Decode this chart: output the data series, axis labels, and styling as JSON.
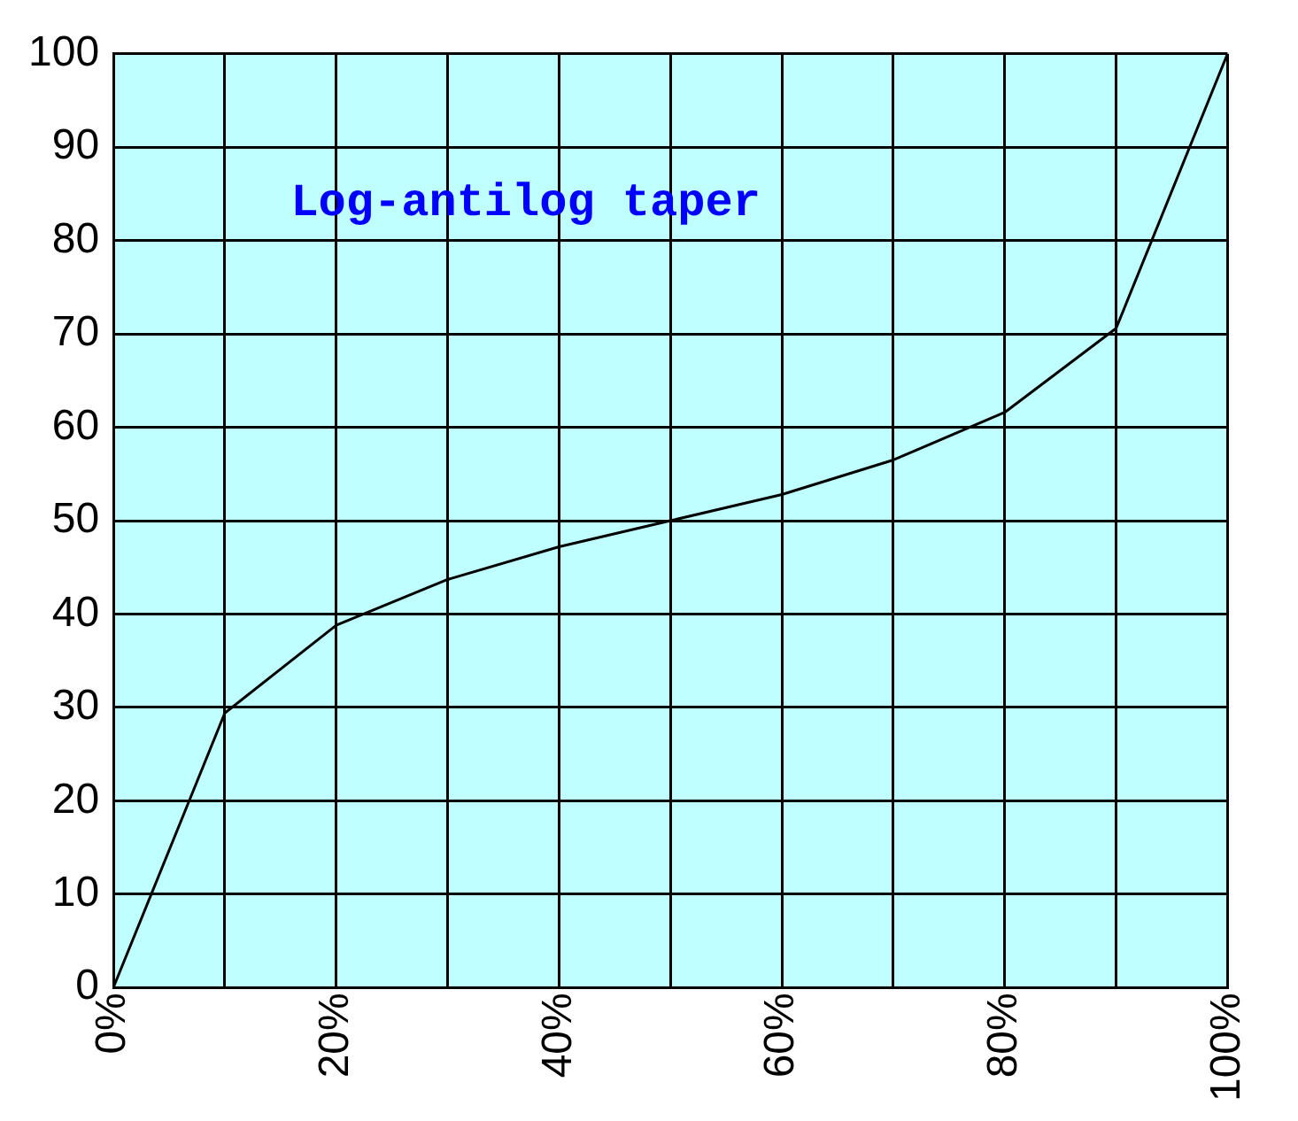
{
  "chart_data": {
    "type": "line",
    "title": "Log-antilog taper",
    "x": [
      0,
      10,
      20,
      30,
      40,
      50,
      60,
      70,
      80,
      90,
      100
    ],
    "series": [
      {
        "color": "#000000",
        "values": [
          0,
          29.4,
          38.8,
          43.7,
          47.2,
          50,
          52.8,
          56.5,
          61.6,
          70.6,
          100
        ]
      }
    ],
    "xlim": [
      0,
      100
    ],
    "xticks": [
      {
        "value": 0,
        "label": "0%"
      },
      {
        "value": 10,
        "label": null
      },
      {
        "value": 20,
        "label": "20%"
      },
      {
        "value": 30,
        "label": null
      },
      {
        "value": 40,
        "label": "40%"
      },
      {
        "value": 50,
        "label": null
      },
      {
        "value": 60,
        "label": "60%"
      },
      {
        "value": 70,
        "label": null
      },
      {
        "value": 80,
        "label": "80%"
      },
      {
        "value": 90,
        "label": null
      },
      {
        "value": 100,
        "label": "100%"
      }
    ],
    "ylim": [
      0,
      100
    ],
    "yticks": [
      0,
      10,
      20,
      30,
      40,
      50,
      60,
      70,
      80,
      90,
      100
    ],
    "grid": true,
    "legend": false,
    "marker": "none",
    "line_style": "solid"
  }
}
